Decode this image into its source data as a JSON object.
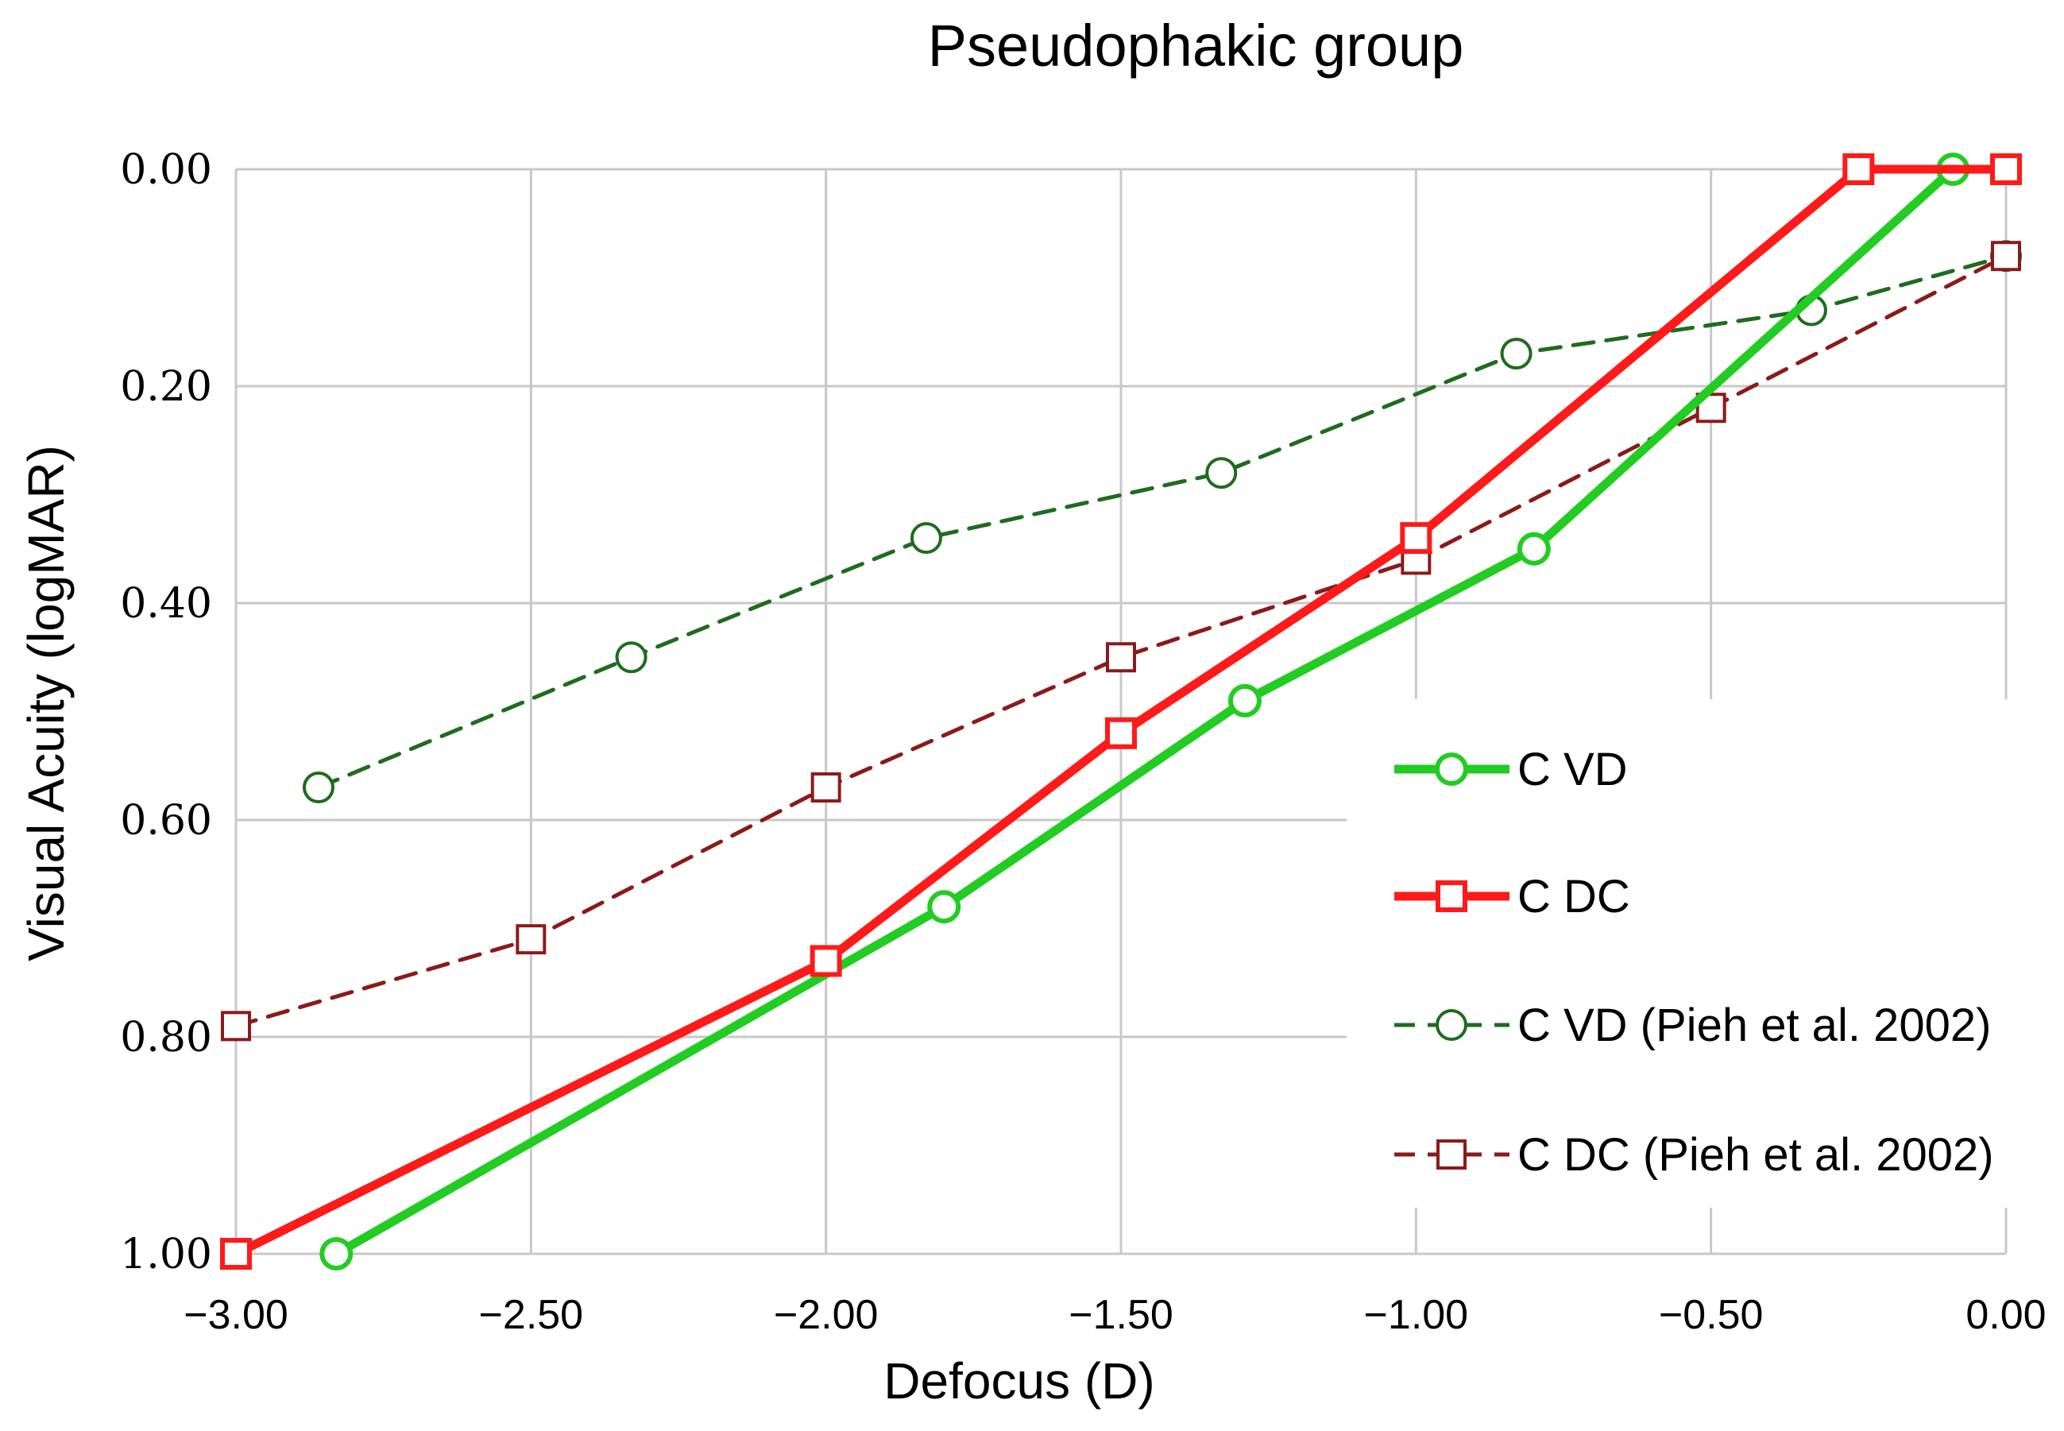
{
  "chart_data": {
    "type": "line",
    "title": "Pseudophakic group",
    "xlabel": "Defocus (D)",
    "ylabel": "Visual Acuity (logMAR)",
    "xlim": [
      -3.0,
      0.0
    ],
    "ylim": [
      0.0,
      1.0
    ],
    "y_inverted": true,
    "xticks": [
      "−3.00",
      "−2.50",
      "−2.00",
      "−1.50",
      "−1.00",
      "−0.50",
      "0.00"
    ],
    "xtick_values": [
      -3.0,
      -2.5,
      -2.0,
      -1.5,
      -1.0,
      -0.5,
      0.0
    ],
    "yticks": [
      "0.00",
      "0.20",
      "0.40",
      "0.60",
      "0.80",
      "1.00"
    ],
    "ytick_values": [
      0.0,
      0.2,
      0.4,
      0.6,
      0.8,
      1.0
    ],
    "grid": true,
    "legend_position": "right",
    "series": [
      {
        "name": "C VD",
        "color": "#22cc22",
        "line": "solid",
        "marker": "circle",
        "x": [
          -2.83,
          -1.8,
          -1.29,
          -0.8,
          -0.09
        ],
        "y": [
          1.0,
          0.68,
          0.49,
          0.35,
          0.0
        ]
      },
      {
        "name": "C DC",
        "color": "#ff1a1a",
        "line": "solid",
        "marker": "square",
        "x": [
          -3.0,
          -2.0,
          -1.5,
          -1.0,
          -0.25,
          0.0
        ],
        "y": [
          1.0,
          0.73,
          0.52,
          0.34,
          0.0,
          0.0
        ]
      },
      {
        "name": "C VD (Pieh et al. 2002)",
        "color": "#1f6b1f",
        "line": "dashed",
        "marker": "circle",
        "x": [
          -2.86,
          -2.33,
          -1.83,
          -1.33,
          -0.83,
          -0.33,
          0.0
        ],
        "y": [
          0.57,
          0.45,
          0.34,
          0.28,
          0.17,
          0.13,
          0.08
        ]
      },
      {
        "name": "C DC (Pieh et al. 2002)",
        "color": "#8b1a1a",
        "line": "dashed",
        "marker": "square",
        "x": [
          -3.0,
          -2.5,
          -2.0,
          -1.5,
          -1.0,
          -0.5,
          0.0
        ],
        "y": [
          0.79,
          0.71,
          0.57,
          0.45,
          0.36,
          0.22,
          0.08
        ]
      }
    ]
  }
}
